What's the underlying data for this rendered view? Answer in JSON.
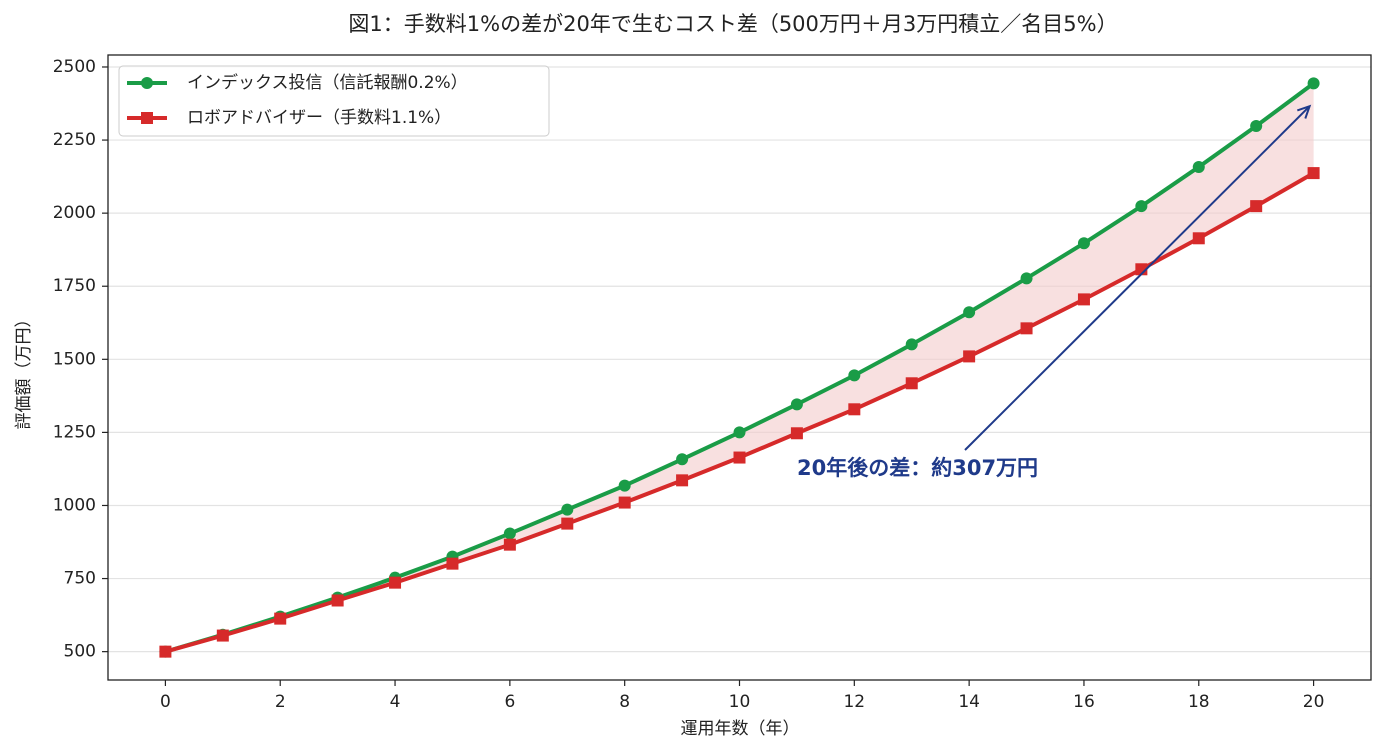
{
  "chart_data": {
    "type": "line",
    "title": "図1：手数料1%の差が20年で生むコスト差（500万円＋月3万円積立／名目5%）",
    "x_label": "運用年数（年）",
    "y_label": "評価額（万円）",
    "x": [
      0,
      1,
      2,
      3,
      4,
      5,
      6,
      7,
      8,
      9,
      10,
      11,
      12,
      13,
      14,
      15,
      16,
      17,
      18,
      19,
      20
    ],
    "series": [
      {
        "name": "インデックス投信（信託報酬0.2%）",
        "color": "#1a9c47",
        "marker": "circle",
        "values": [
          500,
          558,
          620,
          685,
          753,
          825,
          904,
          986,
          1068,
          1158,
          1250,
          1346,
          1445,
          1551,
          1661,
          1777,
          1897,
          2024,
          2158,
          2298,
          2444
        ]
      },
      {
        "name": "ロボアドバイザー（手数料1.1%）",
        "color": "#d62a2a",
        "marker": "square",
        "values": [
          500,
          555,
          613,
          675,
          736,
          801,
          866,
          938,
          1010,
          1086,
          1164,
          1247,
          1329,
          1418,
          1510,
          1606,
          1705,
          1808,
          1914,
          2024,
          2137
        ]
      }
    ],
    "fill_between_color": "#f4cccc",
    "annotation": "20年後の差：約307万円",
    "annotation_color": "#1f3a8a",
    "xlim": [
      -1,
      21
    ],
    "ylim": [
      403,
      2541
    ],
    "xticks": [
      0,
      2,
      4,
      6,
      8,
      10,
      12,
      14,
      16,
      18,
      20
    ],
    "yticks": [
      500,
      750,
      1000,
      1250,
      1500,
      1750,
      2000,
      2250,
      2500
    ],
    "grid": "y",
    "legend": "upper-left"
  }
}
